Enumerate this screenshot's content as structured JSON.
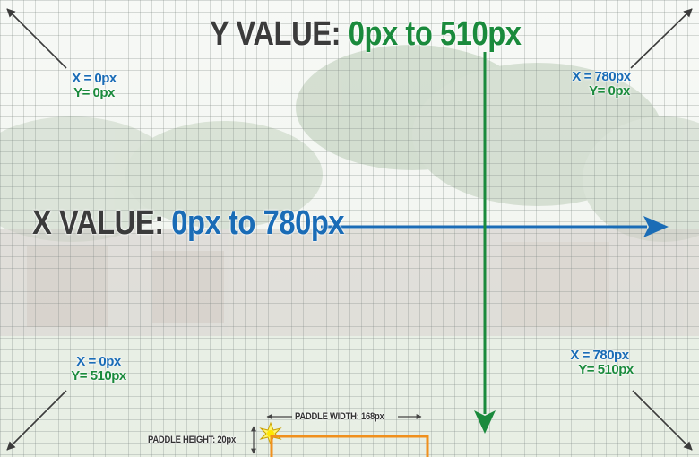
{
  "y_value": {
    "prefix": "Y VALUE:",
    "range": "0px to 510px"
  },
  "x_value": {
    "prefix": "X VALUE:",
    "range": "0px to 780px"
  },
  "corners": {
    "top_left": {
      "x": "X = 0px",
      "y": "Y= 0px"
    },
    "top_right": {
      "x": "X = 780px",
      "y": "Y= 0px"
    },
    "bottom_left": {
      "x": "X = 0px",
      "y": "Y= 510px"
    },
    "bottom_right": {
      "x": "X = 780px",
      "y": "Y= 510px"
    }
  },
  "paddle": {
    "width_label": "PADDLE WIDTH: 168px",
    "height_label": "PADDLE HEIGHT: 20px"
  },
  "colors": {
    "blue": "#1a6cb6",
    "green": "#1a8a3c",
    "gray": "#3b3b3b",
    "paddle": "#f0901e"
  }
}
